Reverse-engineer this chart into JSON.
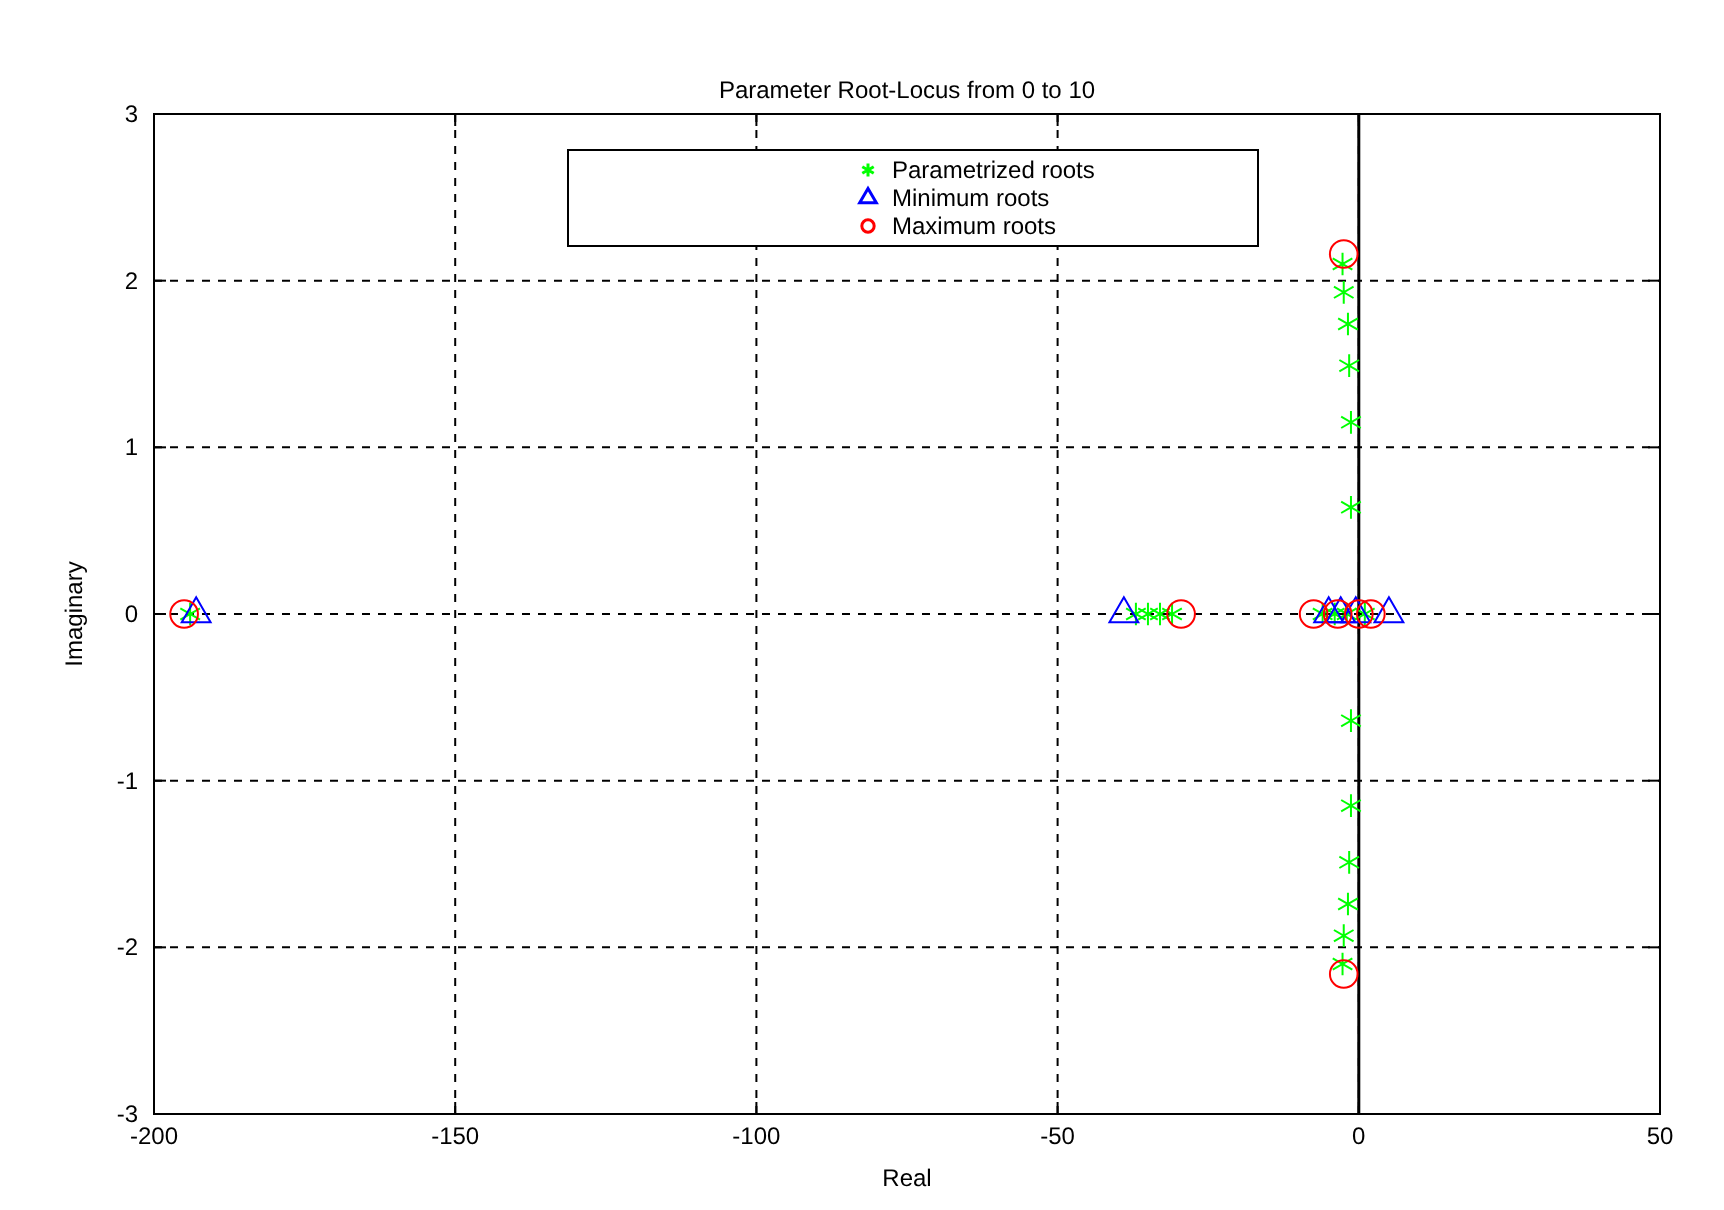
{
  "chart_data": {
    "type": "scatter",
    "title": "Parameter Root-Locus from 0 to 10",
    "xlabel": "Real",
    "ylabel": "Imaginary",
    "xlim": [
      -200,
      50
    ],
    "xticks": [
      -200,
      -150,
      -100,
      -50,
      0,
      50
    ],
    "ylim": [
      -3,
      3
    ],
    "yticks": [
      -3,
      -2,
      -1,
      0,
      1,
      2,
      3
    ],
    "grid": true,
    "legend": "top",
    "ref_lines": [
      {
        "axis": "x",
        "value": 0,
        "color": "#000000",
        "line_style": "solid"
      }
    ],
    "series": [
      {
        "name": "Parametrized roots",
        "color": "#00ff00",
        "marker": "cross",
        "x": [
          -194,
          -37,
          -35,
          -33,
          -31,
          -6,
          -4,
          -2,
          1,
          -2.7,
          -2.5,
          -1.8,
          -1.6,
          -1.3,
          -1.3,
          -2.7,
          -2.5,
          -1.8,
          -1.6,
          -1.3,
          -1.3
        ],
        "values": [
          0,
          0,
          0,
          0,
          0,
          0,
          0,
          0,
          0,
          2.1,
          1.93,
          1.74,
          1.49,
          1.15,
          0.64,
          -2.1,
          -1.93,
          -1.74,
          -1.49,
          -1.15,
          -0.64
        ]
      },
      {
        "name": "Minimum roots",
        "color": "#0000ff",
        "marker": "triangle",
        "x": [
          -193,
          -39,
          -5,
          -3,
          -0.5,
          5
        ],
        "values": [
          0,
          0,
          0,
          0,
          0,
          0
        ]
      },
      {
        "name": "Maximum roots",
        "color": "#ff0000",
        "marker": "circle",
        "x": [
          -195,
          -29.5,
          -7.5,
          -3.5,
          0,
          2,
          -2.5,
          -2.5
        ],
        "values": [
          0,
          0,
          0,
          0,
          0,
          0,
          2.16,
          -2.16
        ]
      }
    ]
  }
}
